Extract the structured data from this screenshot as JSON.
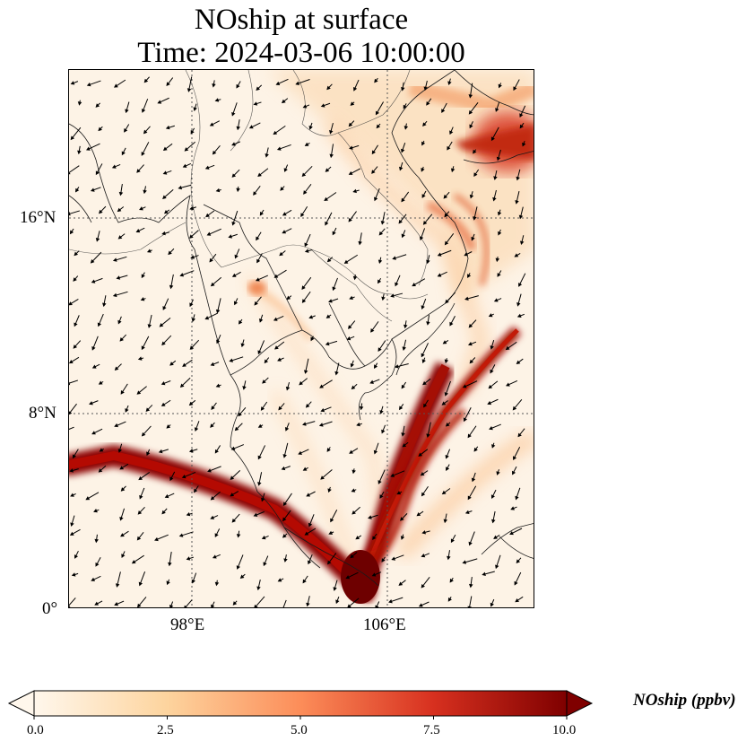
{
  "title": {
    "line1": "NOship at surface",
    "line2": "Time: 2024-03-06 10:00:00"
  },
  "axes": {
    "y_ticks": [
      "16°N",
      "8°N",
      "0°"
    ],
    "x_ticks": [
      "98°E",
      "106°E"
    ]
  },
  "colorbar": {
    "label": "NOship (ppbv)",
    "ticks": [
      "0.0",
      "2.5",
      "5.0",
      "7.5",
      "10.0"
    ],
    "colormap": "OrRd",
    "extend": "both",
    "colors": [
      "#fff7ec",
      "#fdd49e",
      "#fc8d59",
      "#d7301f",
      "#7f0000"
    ]
  },
  "map": {
    "variable": "NOship",
    "level": "surface",
    "lon_range": [
      91,
      110
    ],
    "lat_range": [
      0,
      22
    ],
    "features": [
      "coastlines",
      "country-borders",
      "gridlines",
      "wind-vectors"
    ]
  }
}
